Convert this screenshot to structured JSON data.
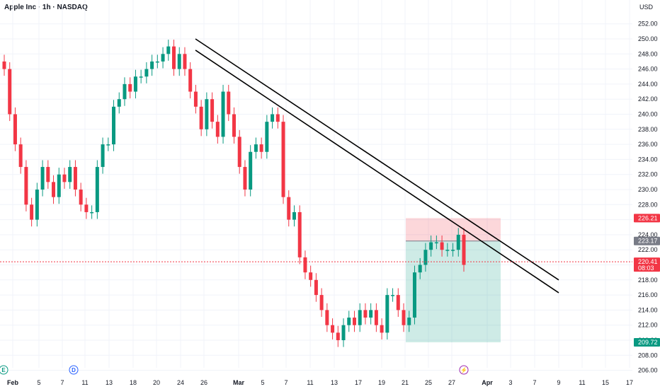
{
  "header": {
    "title": "Apple Inc · 1h · NASDAQ",
    "currency": "USD"
  },
  "colors": {
    "up": "#089981",
    "down": "#f23645",
    "grid": "#f0f3fa",
    "text": "#131722"
  },
  "chart_data": {
    "type": "candlestick",
    "title": "Apple Inc · 1h · NASDAQ",
    "y_unit": "USD",
    "ylim": [
      205,
      253
    ],
    "y_ticks": [
      206,
      208,
      210,
      212,
      214,
      216,
      218,
      220,
      222,
      224,
      226,
      228,
      230,
      232,
      234,
      236,
      238,
      240,
      242,
      244,
      246,
      248,
      250,
      252
    ],
    "x_ticks": [
      "Feb",
      "5",
      "7",
      "11",
      "13",
      "18",
      "20",
      "24",
      "26",
      "Mar",
      "5",
      "7",
      "11",
      "13",
      "17",
      "19",
      "21",
      "25",
      "27",
      "Apr",
      "3",
      "7",
      "9",
      "11",
      "15",
      "17"
    ],
    "closes": [
      [
        0,
        246
      ],
      [
        1,
        240
      ],
      [
        2,
        236
      ],
      [
        3,
        233
      ],
      [
        4,
        228
      ],
      [
        5,
        226
      ],
      [
        6,
        230
      ],
      [
        7,
        233
      ],
      [
        8,
        231
      ],
      [
        9,
        229
      ],
      [
        10,
        232
      ],
      [
        11,
        231
      ],
      [
        12,
        233
      ],
      [
        13,
        230
      ],
      [
        14,
        228
      ],
      [
        15,
        227
      ],
      [
        16,
        227
      ],
      [
        17,
        233
      ],
      [
        18,
        236
      ],
      [
        19,
        236
      ],
      [
        20,
        241
      ],
      [
        21,
        242
      ],
      [
        22,
        244
      ],
      [
        23,
        243
      ],
      [
        24,
        245
      ],
      [
        25,
        245
      ],
      [
        26,
        246
      ],
      [
        27,
        247
      ],
      [
        28,
        247
      ],
      [
        29,
        248
      ],
      [
        30,
        249
      ],
      [
        31,
        246
      ],
      [
        32,
        248
      ],
      [
        33,
        246
      ],
      [
        34,
        243
      ],
      [
        35,
        241
      ],
      [
        36,
        238
      ],
      [
        37,
        242
      ],
      [
        38,
        239
      ],
      [
        39,
        237
      ],
      [
        40,
        243
      ],
      [
        41,
        240
      ],
      [
        42,
        237
      ],
      [
        43,
        233
      ],
      [
        44,
        230
      ],
      [
        45,
        235
      ],
      [
        46,
        236
      ],
      [
        47,
        235
      ],
      [
        48,
        239
      ],
      [
        49,
        240
      ],
      [
        50,
        239
      ],
      [
        51,
        229
      ],
      [
        52,
        226
      ],
      [
        53,
        227
      ],
      [
        54,
        221
      ],
      [
        55,
        219
      ],
      [
        56,
        218
      ],
      [
        57,
        216
      ],
      [
        58,
        214
      ],
      [
        59,
        212
      ],
      [
        60,
        211
      ],
      [
        61,
        210
      ],
      [
        62,
        212
      ],
      [
        63,
        213
      ],
      [
        64,
        212
      ],
      [
        65,
        214
      ],
      [
        66,
        213
      ],
      [
        67,
        214
      ],
      [
        68,
        212
      ],
      [
        69,
        211
      ],
      [
        70,
        216
      ],
      [
        71,
        216
      ],
      [
        72,
        214
      ],
      [
        73,
        212
      ],
      [
        74,
        213
      ],
      [
        75,
        219
      ],
      [
        76,
        220
      ],
      [
        77,
        222
      ],
      [
        78,
        223
      ],
      [
        79,
        223
      ],
      [
        80,
        222
      ],
      [
        81,
        222
      ],
      [
        82,
        222
      ],
      [
        83,
        224
      ],
      [
        84,
        220
      ]
    ],
    "trendlines": [
      {
        "from": [
          "Feb 25",
          250
        ],
        "to": [
          "Apr 9",
          218
        ]
      },
      {
        "from": [
          "Feb 25",
          248.5
        ],
        "to": [
          "Apr 9",
          216.3
        ]
      }
    ],
    "position": {
      "entry": 223.17,
      "stop": 226.21,
      "target": 209.72,
      "start_date": "Mar 21",
      "end_date": "Apr 2"
    },
    "price_labels": [
      {
        "value": "226.21",
        "color": "#f23645"
      },
      {
        "value": "223.17",
        "color": "#787b86"
      },
      {
        "value": "220.41",
        "color": "#f23645",
        "sub": "08:03"
      },
      {
        "value": "209.72",
        "color": "#089981"
      }
    ],
    "current_price": 220.41,
    "events": [
      {
        "label": "E",
        "date": "Jan 30",
        "color": "#089981"
      },
      {
        "label": "D",
        "date": "Feb 10",
        "color": "#2962ff"
      },
      {
        "label": "⚡",
        "date": "Mar 28",
        "color": "#9c27b0"
      }
    ],
    "grid": true
  }
}
